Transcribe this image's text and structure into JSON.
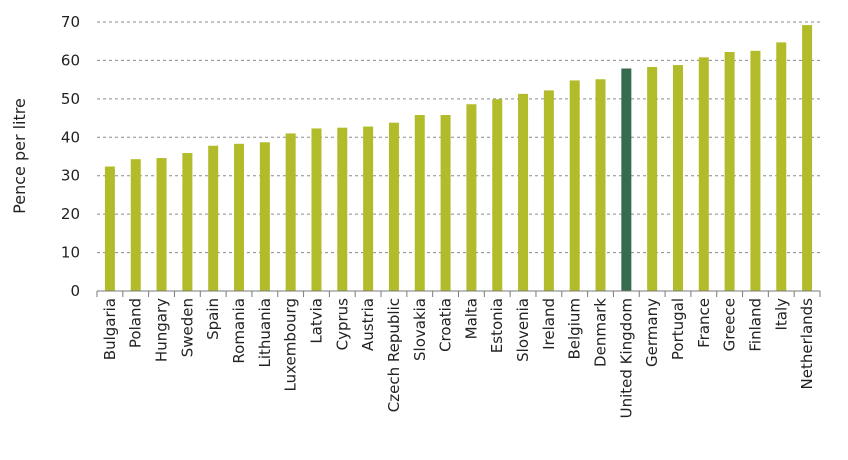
{
  "chart_data": {
    "type": "bar",
    "title": "",
    "xlabel": "",
    "ylabel": "Pence per litre",
    "ylim": [
      0,
      70
    ],
    "yticks": [
      "0",
      "10",
      "20",
      "30",
      "40",
      "50",
      "60",
      "70"
    ],
    "grid": true,
    "highlight_category": "United Kingdom",
    "colors": {
      "bar": "#b2bc2a",
      "highlight": "#356b4f"
    },
    "categories": [
      "Bulgaria",
      "Poland",
      "Hungary",
      "Sweden",
      "Spain",
      "Romania",
      "Lithuania",
      "Luxembourg",
      "Latvia",
      "Cyprus",
      "Austria",
      "Czech Republic",
      "Slovakia",
      "Croatia",
      "Malta",
      "Estonia",
      "Slovenia",
      "Ireland",
      "Belgium",
      "Denmark",
      "United Kingdom",
      "Germany",
      "Portugal",
      "France",
      "Greece",
      "Finland",
      "Italy",
      "Netherlands"
    ],
    "values": [
      32.4,
      34.3,
      34.6,
      35.9,
      37.8,
      38.3,
      38.7,
      41.0,
      42.3,
      42.5,
      42.8,
      43.8,
      45.8,
      45.8,
      48.6,
      49.9,
      51.3,
      52.2,
      54.8,
      55.1,
      57.9,
      58.3,
      58.8,
      60.8,
      62.2,
      62.5,
      64.7,
      69.2
    ]
  }
}
